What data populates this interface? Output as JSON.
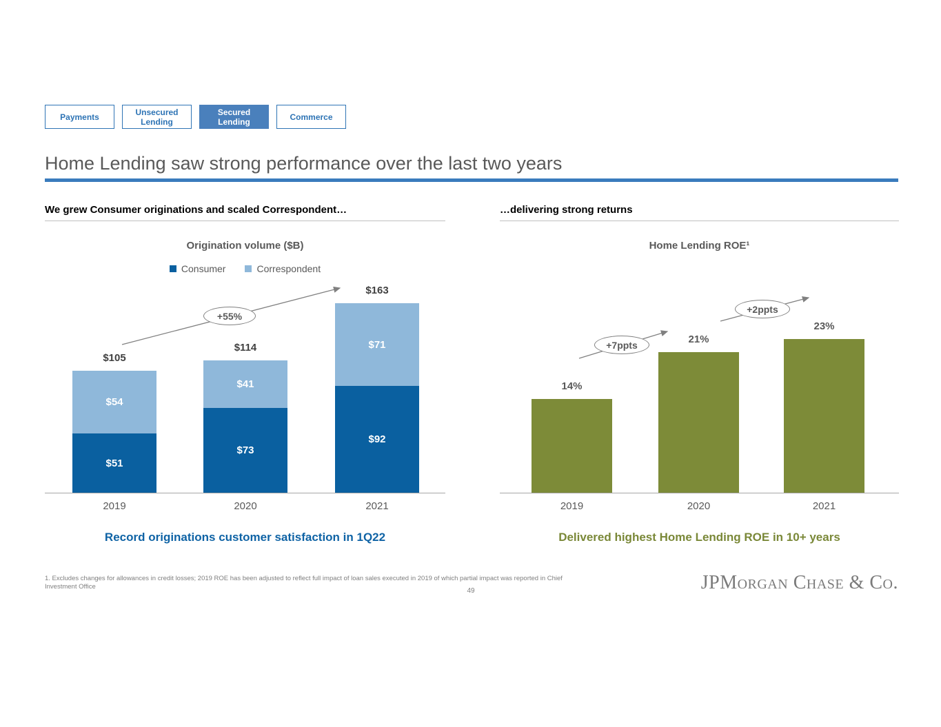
{
  "page": {
    "title": "Home Lending saw strong performance over the last two years",
    "page_number": "49",
    "footnote": "1. Excludes changes for allowances in credit losses; 2019 ROE has been adjusted to reflect full impact of loan sales executed in 2019 of which partial impact was reported in Chief Investment Office",
    "logo": "JPMorgan Chase & Co."
  },
  "tabs": [
    {
      "label": "Payments",
      "selected": false
    },
    {
      "label": "Unsecured Lending",
      "selected": false
    },
    {
      "label": "Secured Lending",
      "selected": true
    },
    {
      "label": "Commerce",
      "selected": false
    }
  ],
  "sections": {
    "left": {
      "header": "We grew Consumer originations and scaled Correspondent…",
      "caption": "Record originations customer satisfaction in 1Q22"
    },
    "right": {
      "header": "…delivering strong returns",
      "caption": "Delivered highest Home Lending ROE in 10+ years"
    }
  },
  "colors": {
    "accent_blue": "#2e74b5",
    "selected_tab_bg": "#4a80bc",
    "title_rule_blue": "#3a7cbd",
    "consumer_blue": "#0a60a0",
    "correspondent_blue": "#8fb8da",
    "olive_green": "#7d8b38",
    "caption_blue": "#0f63a5",
    "title_gray": "#595959"
  },
  "chart_data": [
    {
      "type": "bar",
      "stacked": true,
      "title": "Origination volume ($B)",
      "categories": [
        "2019",
        "2020",
        "2021"
      ],
      "series": [
        {
          "name": "Consumer",
          "values": [
            51,
            73,
            92
          ],
          "labels": [
            "$51",
            "$73",
            "$92"
          ],
          "color": "#0a60a0"
        },
        {
          "name": "Correspondent",
          "values": [
            54,
            41,
            71
          ],
          "labels": [
            "$54",
            "$41",
            "$71"
          ],
          "color": "#8fb8da"
        }
      ],
      "totals": [
        "$105",
        "$114",
        "$163"
      ],
      "annotation": "+55%",
      "ylim": [
        0,
        170
      ],
      "unit": "$B",
      "legend_position": "top",
      "grid": false
    },
    {
      "type": "bar",
      "stacked": false,
      "title": "Home Lending ROE¹",
      "categories": [
        "2019",
        "2020",
        "2021"
      ],
      "values": [
        14,
        21,
        23
      ],
      "value_labels": [
        "14%",
        "21%",
        "23%"
      ],
      "annotations": [
        "+7ppts",
        "+2ppts"
      ],
      "color": "#7d8b38",
      "ylim": [
        0,
        25
      ],
      "unit": "%",
      "grid": false
    }
  ]
}
